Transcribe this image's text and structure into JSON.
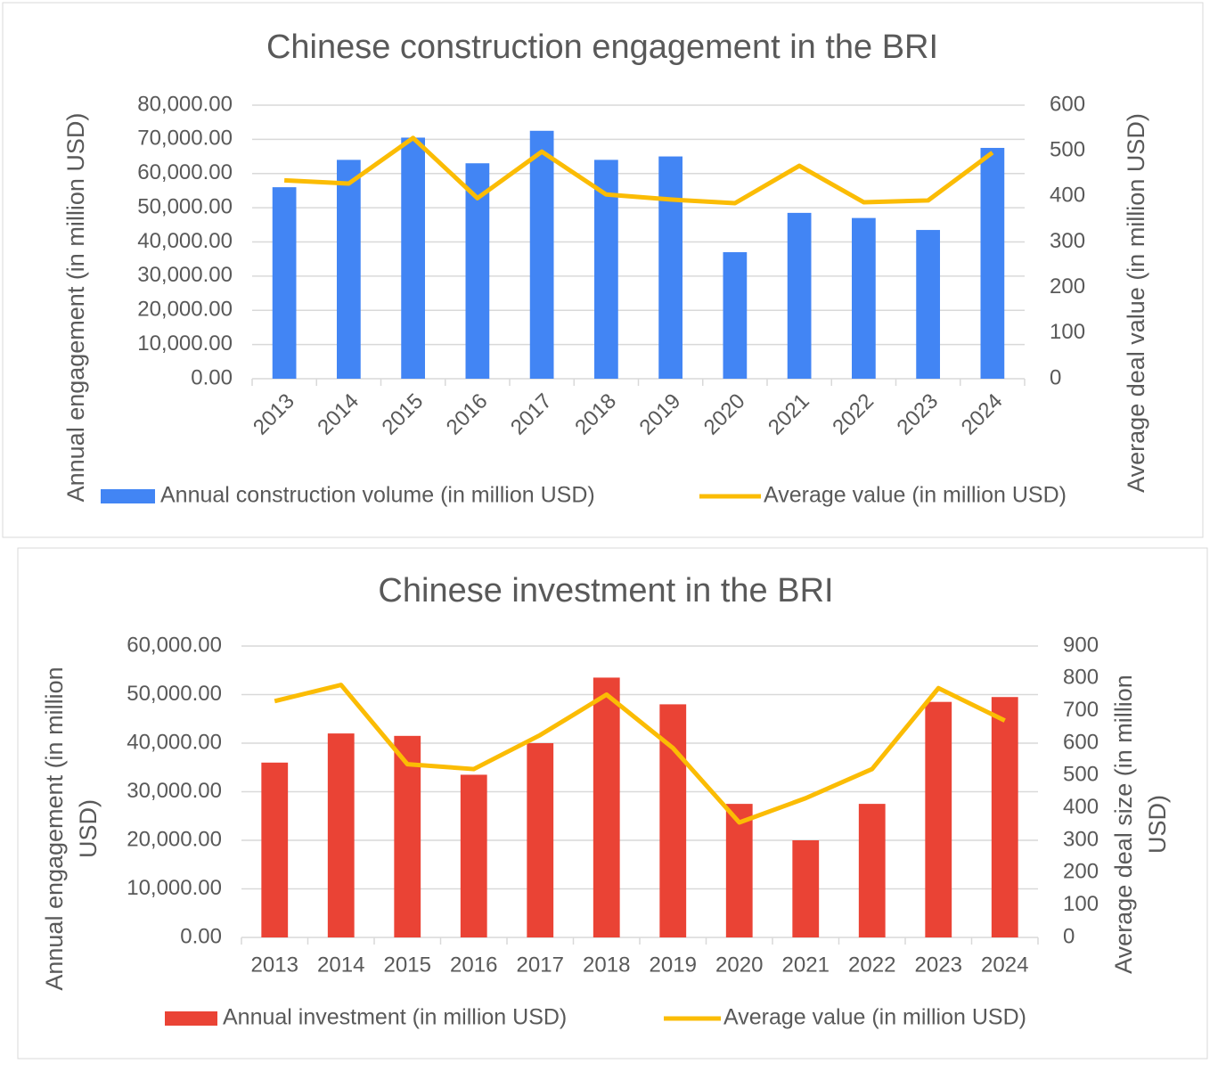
{
  "chart_data": [
    {
      "type": "combo",
      "title": "Chinese construction engagement in the BRI",
      "y_label": "Annual engagement (in million USD)",
      "y2_label": "Average deal value (in million USD)",
      "categories": [
        "2013",
        "2014",
        "2015",
        "2016",
        "2017",
        "2018",
        "2019",
        "2020",
        "2021",
        "2022",
        "2023",
        "2024"
      ],
      "series": [
        {
          "name": "Annual construction volume (in million USD)",
          "type": "bar",
          "color": "#4285f4",
          "values": [
            56000,
            64000,
            70500,
            63000,
            72500,
            64000,
            65000,
            37000,
            48500,
            47000,
            43500,
            67500
          ]
        },
        {
          "name": "Average value (in million USD)",
          "type": "line",
          "axis": "y2",
          "color": "#fbbc04",
          "values": [
            435,
            428,
            528,
            396,
            498,
            404,
            393,
            385,
            467,
            387,
            391,
            496
          ]
        }
      ],
      "ylim": [
        0,
        80000
      ],
      "yticks": [
        {
          "value": 0,
          "label": "0.00"
        },
        {
          "value": 10000,
          "label": "10,000.00"
        },
        {
          "value": 20000,
          "label": "20,000.00"
        },
        {
          "value": 30000,
          "label": "30,000.00"
        },
        {
          "value": 40000,
          "label": "40,000.00"
        },
        {
          "value": 50000,
          "label": "50,000.00"
        },
        {
          "value": 60000,
          "label": "60,000.00"
        },
        {
          "value": 70000,
          "label": "70,000.00"
        },
        {
          "value": 80000,
          "label": "80,000.00"
        }
      ],
      "y2lim": [
        0,
        600
      ],
      "y2ticks": [
        0,
        100,
        200,
        300,
        400,
        500,
        600
      ],
      "grid": true,
      "legend": "bottom"
    },
    {
      "type": "combo",
      "title": "Chinese investment in the BRI",
      "y_label": "Annual engagement (in million USD)",
      "y2_label": "Average deal size (in million USD)",
      "categories": [
        "2013",
        "2014",
        "2015",
        "2016",
        "2017",
        "2018",
        "2019",
        "2020",
        "2021",
        "2022",
        "2023",
        "2024"
      ],
      "series": [
        {
          "name": "Annual investment (in million USD)",
          "type": "bar",
          "color": "#ea4335",
          "values": [
            36000,
            42000,
            41500,
            33500,
            40000,
            53500,
            48000,
            27500,
            20000,
            27500,
            48500,
            49500
          ]
        },
        {
          "name": "Average value (in million USD)",
          "type": "line",
          "axis": "y2",
          "color": "#fbbc04",
          "values": [
            730,
            780,
            535,
            520,
            625,
            750,
            585,
            355,
            430,
            520,
            770,
            670
          ]
        }
      ],
      "ylim": [
        0,
        60000
      ],
      "yticks": [
        {
          "value": 0,
          "label": "0.00"
        },
        {
          "value": 10000,
          "label": "10,000.00"
        },
        {
          "value": 20000,
          "label": "20,000.00"
        },
        {
          "value": 30000,
          "label": "30,000.00"
        },
        {
          "value": 40000,
          "label": "40,000.00"
        },
        {
          "value": 50000,
          "label": "50,000.00"
        },
        {
          "value": 60000,
          "label": "60,000.00"
        }
      ],
      "y2lim": [
        0,
        900
      ],
      "y2ticks": [
        0,
        100,
        200,
        300,
        400,
        500,
        600,
        700,
        800,
        900
      ],
      "grid": true,
      "legend": "bottom"
    }
  ]
}
